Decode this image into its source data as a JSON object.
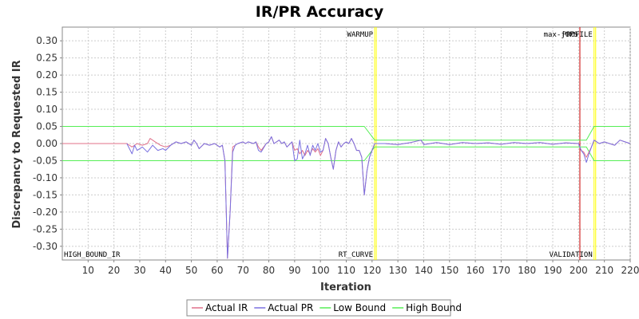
{
  "chart_data": {
    "type": "line",
    "title": "IR/PR Accuracy",
    "xlabel": "Iteration",
    "ylabel": "Discrepancy to Requested IR",
    "xlim": [
      0,
      220
    ],
    "ylim": [
      -0.34,
      0.34
    ],
    "x_ticks": [
      10,
      20,
      30,
      40,
      50,
      60,
      70,
      80,
      90,
      100,
      110,
      120,
      130,
      140,
      150,
      160,
      170,
      180,
      190,
      200,
      210,
      220
    ],
    "y_ticks": [
      -0.3,
      -0.25,
      -0.2,
      -0.15,
      -0.1,
      -0.05,
      0.0,
      0.05,
      0.1,
      0.15,
      0.2,
      0.25,
      0.3
    ],
    "grid": true,
    "legend_position": "bottom",
    "markers": [
      {
        "x": 121,
        "label": "WARMUP",
        "color": "#ffff00"
      },
      {
        "x": 200.5,
        "label": "max-jOPS",
        "color": "#cc0000"
      },
      {
        "x": 206,
        "label": "PROFILE",
        "color": "#ffff00"
      }
    ],
    "phase_labels": [
      {
        "x": 0,
        "label": "HIGH_BOUND_IR"
      },
      {
        "x": 121,
        "label": "RT_CURVE"
      },
      {
        "x": 206,
        "label": "VALIDATION"
      }
    ],
    "series": [
      {
        "name": "Actual IR",
        "color": "#e0708a",
        "points": [
          [
            0,
            0
          ],
          [
            25,
            0
          ],
          [
            27,
            -0.01
          ],
          [
            29,
            0.0
          ],
          [
            31,
            -0.005
          ],
          [
            33,
            0.0
          ],
          [
            34,
            0.015
          ],
          [
            36,
            0.005
          ],
          [
            38,
            -0.005
          ],
          [
            40,
            -0.01
          ],
          [
            42,
            -0.005
          ],
          [
            44,
            0.005
          ],
          [
            46,
            0.0
          ],
          [
            48,
            0.005
          ],
          [
            50,
            -0.005
          ],
          [
            51,
            0.01
          ],
          [
            52,
            0.0
          ],
          [
            53,
            -0.015
          ],
          [
            55,
            0.0
          ],
          [
            57,
            -0.005
          ],
          [
            59,
            0.0
          ],
          [
            61,
            -0.01
          ],
          [
            62,
            -0.005
          ],
          [
            63,
            -0.05
          ],
          [
            64,
            -0.335
          ],
          [
            65,
            -0.2
          ],
          [
            66,
            -0.01
          ],
          [
            67,
            -0.005
          ],
          [
            68,
            0.0
          ],
          [
            70,
            0.005
          ],
          [
            71,
            0.0
          ],
          [
            72,
            0.005
          ],
          [
            74,
            0.0
          ],
          [
            75,
            0.005
          ],
          [
            76,
            -0.01
          ],
          [
            77,
            -0.02
          ],
          [
            79,
            0.0
          ],
          [
            80,
            0.005
          ],
          [
            81,
            0.02
          ],
          [
            82,
            0.0
          ],
          [
            84,
            0.01
          ],
          [
            85,
            0.0
          ],
          [
            86,
            0.005
          ],
          [
            87,
            -0.01
          ],
          [
            89,
            0.005
          ],
          [
            90,
            -0.02
          ],
          [
            91,
            -0.015
          ],
          [
            92,
            -0.03
          ],
          [
            93,
            -0.02
          ],
          [
            94,
            -0.035
          ],
          [
            95,
            -0.02
          ],
          [
            96,
            -0.03
          ],
          [
            97,
            -0.015
          ],
          [
            98,
            -0.025
          ],
          [
            99,
            -0.015
          ],
          [
            100,
            -0.035
          ],
          [
            101,
            -0.02
          ],
          [
            102,
            0.015
          ],
          [
            103,
            0.0
          ],
          [
            104,
            -0.04
          ],
          [
            105,
            -0.075
          ],
          [
            106,
            -0.02
          ],
          [
            107,
            0.005
          ],
          [
            108,
            -0.01
          ],
          [
            109,
            0.0
          ],
          [
            110,
            0.005
          ],
          [
            111,
            0.0
          ],
          [
            112,
            0.015
          ],
          [
            113,
            0.0
          ],
          [
            114,
            -0.02
          ],
          [
            115,
            -0.02
          ],
          [
            116,
            -0.04
          ],
          [
            117,
            -0.15
          ],
          [
            118,
            -0.08
          ],
          [
            119,
            -0.04
          ],
          [
            120,
            -0.02
          ],
          [
            121,
            0.0
          ],
          [
            125,
            0.0
          ],
          [
            130,
            -0.003
          ],
          [
            135,
            0.003
          ],
          [
            139,
            0.01
          ],
          [
            140,
            -0.003
          ],
          [
            145,
            0.003
          ],
          [
            150,
            -0.003
          ],
          [
            155,
            0.003
          ],
          [
            160,
            0.0
          ],
          [
            165,
            0.002
          ],
          [
            170,
            -0.002
          ],
          [
            175,
            0.003
          ],
          [
            180,
            0.0
          ],
          [
            185,
            0.003
          ],
          [
            190,
            -0.002
          ],
          [
            195,
            0.002
          ],
          [
            200,
            0.0
          ],
          [
            201,
            -0.02
          ],
          [
            202,
            -0.025
          ],
          [
            203,
            -0.04
          ],
          [
            204,
            -0.025
          ],
          [
            205,
            -0.01
          ],
          [
            206,
            0.01
          ],
          [
            208,
            0.0
          ],
          [
            210,
            0.005
          ],
          [
            212,
            0.0
          ],
          [
            214,
            -0.005
          ],
          [
            216,
            0.01
          ],
          [
            218,
            0.005
          ],
          [
            220,
            0.0
          ]
        ]
      },
      {
        "name": "Actual PR",
        "color": "#7a70e0",
        "points": [
          [
            25,
            0
          ],
          [
            27,
            -0.03
          ],
          [
            28,
            -0.005
          ],
          [
            29,
            -0.02
          ],
          [
            31,
            -0.01
          ],
          [
            33,
            -0.025
          ],
          [
            35,
            -0.005
          ],
          [
            37,
            -0.02
          ],
          [
            39,
            -0.015
          ],
          [
            40,
            -0.02
          ],
          [
            42,
            -0.005
          ],
          [
            44,
            0.005
          ],
          [
            46,
            0.0
          ],
          [
            48,
            0.005
          ],
          [
            50,
            -0.005
          ],
          [
            51,
            0.01
          ],
          [
            52,
            0.0
          ],
          [
            53,
            -0.015
          ],
          [
            55,
            0.0
          ],
          [
            57,
            -0.005
          ],
          [
            59,
            0.0
          ],
          [
            61,
            -0.01
          ],
          [
            62,
            -0.005
          ],
          [
            63,
            -0.05
          ],
          [
            64,
            -0.335
          ],
          [
            65,
            -0.2
          ],
          [
            66,
            -0.025
          ],
          [
            67,
            -0.005
          ],
          [
            68,
            0.0
          ],
          [
            70,
            0.005
          ],
          [
            71,
            0.0
          ],
          [
            72,
            0.005
          ],
          [
            74,
            0.0
          ],
          [
            75,
            0.005
          ],
          [
            76,
            -0.02
          ],
          [
            77,
            -0.025
          ],
          [
            79,
            0.0
          ],
          [
            80,
            0.005
          ],
          [
            81,
            0.02
          ],
          [
            82,
            0.0
          ],
          [
            84,
            0.01
          ],
          [
            85,
            0.0
          ],
          [
            86,
            0.005
          ],
          [
            87,
            -0.01
          ],
          [
            89,
            0.005
          ],
          [
            90,
            -0.05
          ],
          [
            91,
            -0.045
          ],
          [
            92,
            0.01
          ],
          [
            93,
            -0.045
          ],
          [
            94,
            -0.03
          ],
          [
            95,
            -0.005
          ],
          [
            96,
            -0.035
          ],
          [
            97,
            -0.005
          ],
          [
            98,
            -0.02
          ],
          [
            99,
            0.0
          ],
          [
            100,
            -0.025
          ],
          [
            101,
            -0.02
          ],
          [
            102,
            0.015
          ],
          [
            103,
            0.0
          ],
          [
            104,
            -0.04
          ],
          [
            105,
            -0.075
          ],
          [
            106,
            -0.02
          ],
          [
            107,
            0.005
          ],
          [
            108,
            -0.01
          ],
          [
            109,
            0.0
          ],
          [
            110,
            0.005
          ],
          [
            111,
            0.0
          ],
          [
            112,
            0.015
          ],
          [
            113,
            0.0
          ],
          [
            114,
            -0.02
          ],
          [
            115,
            -0.02
          ],
          [
            116,
            -0.04
          ],
          [
            117,
            -0.15
          ],
          [
            118,
            -0.08
          ],
          [
            119,
            -0.04
          ],
          [
            120,
            -0.02
          ],
          [
            121,
            0.0
          ],
          [
            125,
            0.0
          ],
          [
            130,
            -0.003
          ],
          [
            135,
            0.003
          ],
          [
            139,
            0.01
          ],
          [
            140,
            -0.003
          ],
          [
            145,
            0.003
          ],
          [
            150,
            -0.003
          ],
          [
            155,
            0.003
          ],
          [
            160,
            0.0
          ],
          [
            165,
            0.002
          ],
          [
            170,
            -0.002
          ],
          [
            175,
            0.003
          ],
          [
            180,
            0.0
          ],
          [
            185,
            0.003
          ],
          [
            190,
            -0.002
          ],
          [
            195,
            0.002
          ],
          [
            200,
            0.0
          ],
          [
            201,
            -0.02
          ],
          [
            202,
            -0.03
          ],
          [
            203,
            -0.055
          ],
          [
            204,
            -0.03
          ],
          [
            205,
            -0.01
          ],
          [
            206,
            0.01
          ],
          [
            208,
            0.0
          ],
          [
            210,
            0.005
          ],
          [
            212,
            0.0
          ],
          [
            214,
            -0.005
          ],
          [
            216,
            0.01
          ],
          [
            218,
            0.005
          ],
          [
            220,
            0.0
          ]
        ]
      },
      {
        "name": "Low Bound",
        "color": "#55ee55",
        "points": [
          [
            0,
            -0.05
          ],
          [
            117,
            -0.05
          ],
          [
            121,
            -0.01
          ],
          [
            201,
            -0.01
          ],
          [
            203,
            -0.01
          ],
          [
            206,
            -0.05
          ],
          [
            220,
            -0.05
          ]
        ]
      },
      {
        "name": "High Bound",
        "color": "#55ee55",
        "points": [
          [
            0,
            0.05
          ],
          [
            117,
            0.05
          ],
          [
            121,
            0.01
          ],
          [
            201,
            0.01
          ],
          [
            203,
            0.01
          ],
          [
            206,
            0.05
          ],
          [
            220,
            0.05
          ]
        ]
      }
    ]
  }
}
